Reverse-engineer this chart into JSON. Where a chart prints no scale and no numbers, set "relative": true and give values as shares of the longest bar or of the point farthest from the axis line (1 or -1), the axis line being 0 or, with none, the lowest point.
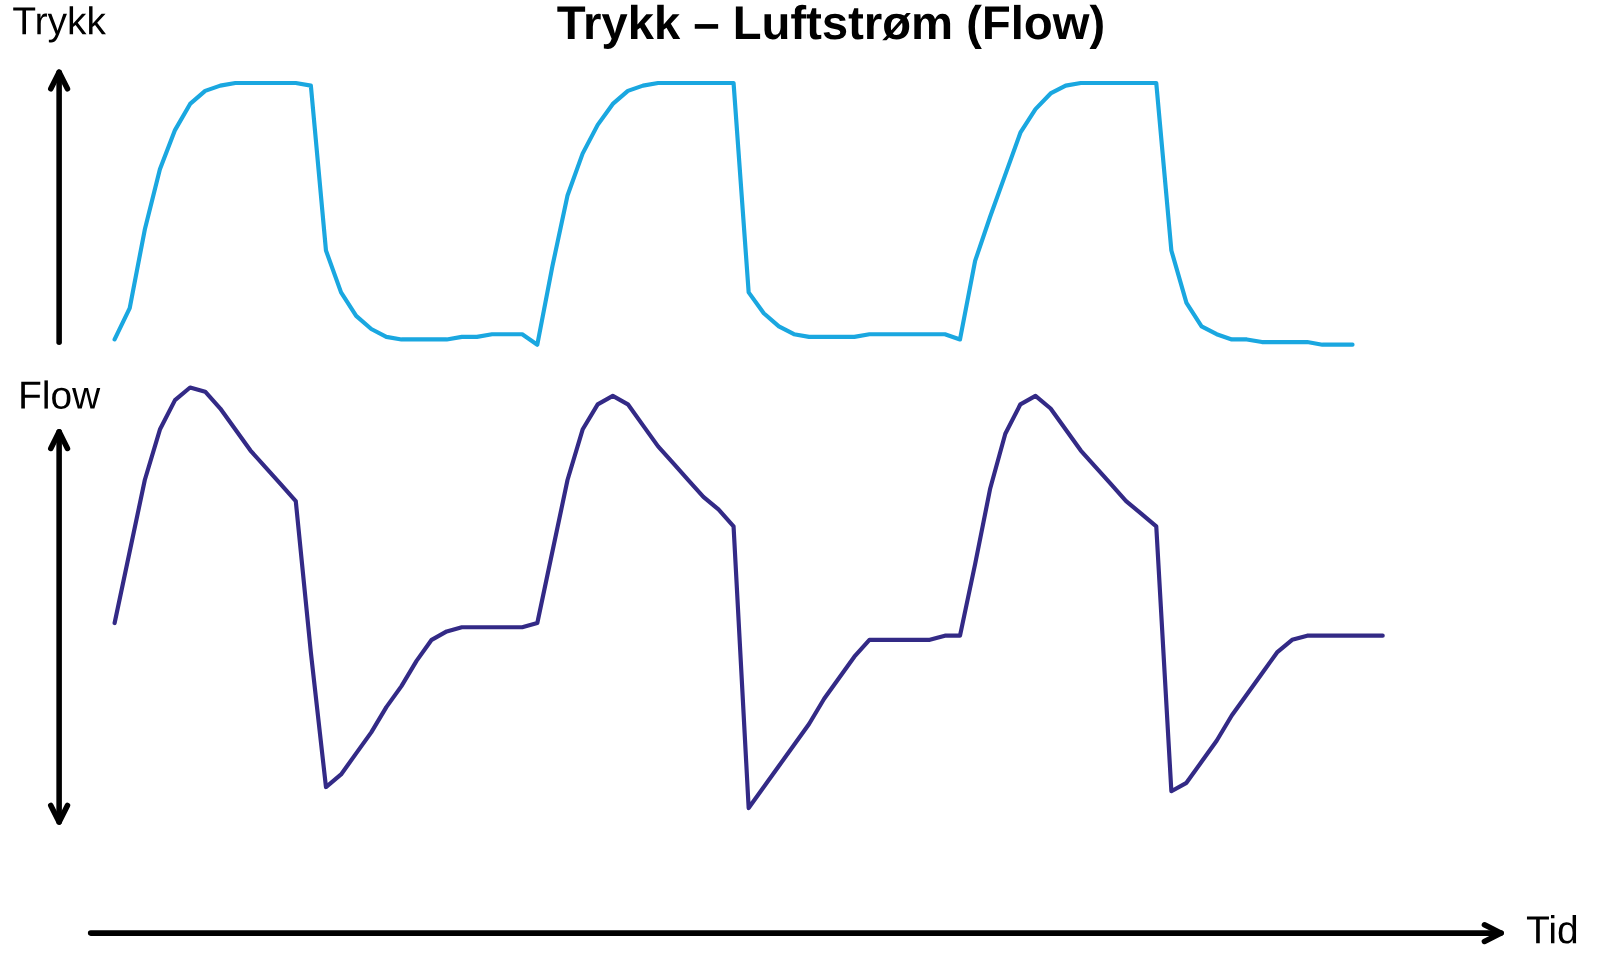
{
  "chart_data": [
    {
      "type": "line",
      "relative": true,
      "title": "Trykk – Luftstrøm (Flow)",
      "ylabel": "Trykk",
      "tick_labels": false,
      "categories": [
        null,
        null,
        null,
        null,
        null,
        null,
        null,
        null,
        null,
        null,
        null,
        null,
        null,
        null,
        null,
        null,
        null,
        null,
        null,
        null,
        null,
        null,
        null,
        null,
        null,
        null,
        null,
        null,
        null,
        null,
        null,
        null,
        null,
        null,
        null,
        null,
        null,
        null,
        null,
        null,
        null,
        null,
        null,
        null,
        null,
        null,
        null,
        null,
        null,
        null,
        null,
        null,
        null,
        null,
        null,
        null,
        null,
        null,
        null,
        null,
        null,
        null,
        null,
        null,
        null,
        null,
        null,
        null,
        null,
        null,
        null,
        null,
        null,
        null,
        null,
        null,
        null,
        null,
        null,
        null,
        null,
        null,
        null,
        null,
        null
      ],
      "series": [
        {
          "color": "#1aa7e0",
          "values": [
            0.02,
            0.14,
            0.44,
            0.67,
            0.82,
            0.92,
            0.97,
            0.99,
            1.0,
            1.0,
            1.0,
            1.0,
            1.0,
            0.99,
            0.36,
            0.2,
            0.11,
            0.06,
            0.03,
            0.02,
            0.02,
            0.02,
            0.02,
            0.03,
            0.03,
            0.04,
            0.04,
            0.04,
            0.0,
            0.3,
            0.57,
            0.73,
            0.84,
            0.92,
            0.97,
            0.99,
            1.0,
            1.0,
            1.0,
            1.0,
            1.0,
            1.0,
            0.2,
            0.12,
            0.07,
            0.04,
            0.03,
            0.03,
            0.03,
            0.03,
            0.04,
            0.04,
            0.04,
            0.04,
            0.04,
            0.04,
            0.02,
            0.32,
            0.49,
            0.65,
            0.81,
            0.9,
            0.96,
            0.99,
            1.0,
            1.0,
            1.0,
            1.0,
            1.0,
            1.0,
            0.36,
            0.16,
            0.07,
            0.04,
            0.02,
            0.02,
            0.01,
            0.01,
            0.01,
            0.01,
            0.0,
            0.0,
            0.0,
            null,
            null
          ]
        }
      ]
    },
    {
      "type": "line",
      "relative": true,
      "ylabel": "Flow",
      "xlabel": "Tid",
      "tick_labels": false,
      "categories": [
        null,
        null,
        null,
        null,
        null,
        null,
        null,
        null,
        null,
        null,
        null,
        null,
        null,
        null,
        null,
        null,
        null,
        null,
        null,
        null,
        null,
        null,
        null,
        null,
        null,
        null,
        null,
        null,
        null,
        null,
        null,
        null,
        null,
        null,
        null,
        null,
        null,
        null,
        null,
        null,
        null,
        null,
        null,
        null,
        null,
        null,
        null,
        null,
        null,
        null,
        null,
        null,
        null,
        null,
        null,
        null,
        null,
        null,
        null,
        null,
        null,
        null,
        null,
        null,
        null,
        null,
        null,
        null,
        null,
        null,
        null,
        null,
        null,
        null,
        null,
        null,
        null,
        null,
        null,
        null,
        null,
        null,
        null,
        null,
        null
      ],
      "series": [
        {
          "color": "#332a86",
          "values": [
            0.44,
            0.61,
            0.78,
            0.9,
            0.97,
            1.0,
            0.99,
            0.95,
            0.9,
            0.85,
            0.81,
            0.77,
            0.73,
            0.37,
            0.05,
            0.08,
            0.13,
            0.18,
            0.24,
            0.29,
            0.35,
            0.4,
            0.42,
            0.43,
            0.43,
            0.43,
            0.43,
            0.43,
            0.44,
            0.61,
            0.78,
            0.9,
            0.96,
            0.98,
            0.96,
            0.91,
            0.86,
            0.82,
            0.78,
            0.74,
            0.71,
            0.67,
            0.0,
            0.05,
            0.1,
            0.15,
            0.2,
            0.26,
            0.31,
            0.36,
            0.4,
            0.4,
            0.4,
            0.4,
            0.4,
            0.41,
            0.41,
            0.58,
            0.76,
            0.89,
            0.96,
            0.98,
            0.95,
            0.9,
            0.85,
            0.81,
            0.77,
            0.73,
            0.7,
            0.67,
            0.04,
            0.06,
            0.11,
            0.16,
            0.22,
            0.27,
            0.32,
            0.37,
            0.4,
            0.41,
            0.41,
            0.41,
            0.41,
            0.41,
            0.41
          ]
        }
      ]
    }
  ]
}
